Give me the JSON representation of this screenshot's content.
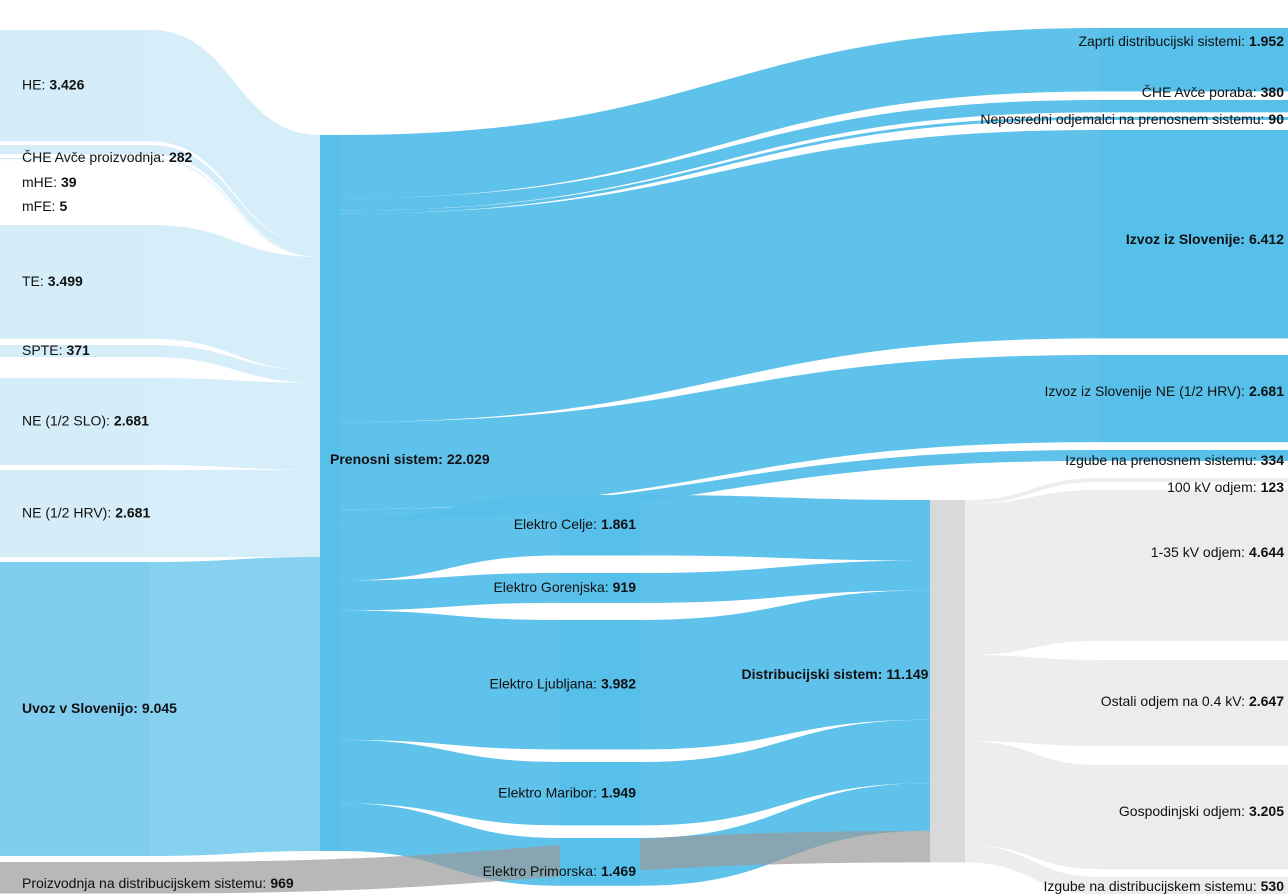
{
  "chart_data": {
    "type": "sankey",
    "nodes": [
      {
        "label": "HE:",
        "value": 3426,
        "value_label": "3.426",
        "color": "#d4edf9"
      },
      {
        "label": "ČHE Avče proizvodnja:",
        "value": 282,
        "value_label": "282",
        "color": "#d4edf9"
      },
      {
        "label": "mHE:",
        "value": 39,
        "value_label": "39",
        "color": "#d4edf9"
      },
      {
        "label": "mFE:",
        "value": 5,
        "value_label": "5",
        "color": "#d4edf9"
      },
      {
        "label": "TE:",
        "value": 3499,
        "value_label": "3.499",
        "color": "#d4edf9"
      },
      {
        "label": "SPTE:",
        "value": 371,
        "value_label": "371",
        "color": "#d4edf9"
      },
      {
        "label": "NE (1/2 SLO):",
        "value": 2681,
        "value_label": "2.681",
        "color": "#d4edf9"
      },
      {
        "label": "NE (1/2 HRV):",
        "value": 2681,
        "value_label": "2.681",
        "color": "#d4edf9"
      },
      {
        "label": "Uvoz v Slovenijo:",
        "value": 9045,
        "value_label": "9.045",
        "color": "#80cdef",
        "bold": true
      },
      {
        "label": "Proizvodnja na distribucijskem sistemu:",
        "value": 969,
        "value_label": "969",
        "color": "#9a9a9a"
      },
      {
        "label": "Prenosni sistem:",
        "value": 22029,
        "value_label": "22.029",
        "color": "#56bfea",
        "bold": true
      },
      {
        "label": "Zaprti distribucijski sistemi:",
        "value": 1952,
        "value_label": "1.952",
        "color": "#56bfea"
      },
      {
        "label": "ČHE Avče poraba:",
        "value": 380,
        "value_label": "380",
        "color": "#56bfea"
      },
      {
        "label": "Neposredni odjemalci na prenosnem sistemu:",
        "value": 90,
        "value_label": "90",
        "color": "#56bfea"
      },
      {
        "label": "Izvoz iz Slovenije:",
        "value": 6412,
        "value_label": "6.412",
        "color": "#56bfea",
        "bold": true
      },
      {
        "label": "Izvoz iz Slovenije NE (1/2 HRV):",
        "value": 2681,
        "value_label": "2.681",
        "color": "#56bfea"
      },
      {
        "label": "Izgube na prenosnem sistemu:",
        "value": 334,
        "value_label": "334",
        "color": "#56bfea"
      },
      {
        "label": "Elektro Celje:",
        "value": 1861,
        "value_label": "1.861",
        "color": "#56bfea"
      },
      {
        "label": "Elektro Gorenjska:",
        "value": 919,
        "value_label": "919",
        "color": "#56bfea"
      },
      {
        "label": "Elektro Ljubljana:",
        "value": 3982,
        "value_label": "3.982",
        "color": "#56bfea"
      },
      {
        "label": "Elektro Maribor:",
        "value": 1949,
        "value_label": "1.949",
        "color": "#56bfea"
      },
      {
        "label": "Elektro Primorska:",
        "value": 1469,
        "value_label": "1.469",
        "color": "#56bfea"
      },
      {
        "label": "Distribucijski sistem:",
        "value": 11149,
        "value_label": "11.149",
        "color": "#d9d9d9",
        "bold": true
      },
      {
        "label": "100 kV odjem:",
        "value": 123,
        "value_label": "123",
        "color": "#ececec"
      },
      {
        "label": "1-35 kV odjem:",
        "value": 4644,
        "value_label": "4.644",
        "color": "#ececec"
      },
      {
        "label": "Ostali odjem na 0.4 kV:",
        "value": 2647,
        "value_label": "2.647",
        "color": "#ececec"
      },
      {
        "label": "Gospodinjski odjem:",
        "value": 3205,
        "value_label": "3.205",
        "color": "#ececec"
      },
      {
        "label": "Izgube na distribucijskem sistemu:",
        "value": 530,
        "value_label": "530",
        "color": "#ececec"
      }
    ],
    "links": [
      {
        "source": 0,
        "target": 10
      },
      {
        "source": 1,
        "target": 10
      },
      {
        "source": 2,
        "target": 10
      },
      {
        "source": 3,
        "target": 10
      },
      {
        "source": 4,
        "target": 10
      },
      {
        "source": 5,
        "target": 10
      },
      {
        "source": 6,
        "target": 10
      },
      {
        "source": 7,
        "target": 10
      },
      {
        "source": 8,
        "target": 10
      },
      {
        "source": 10,
        "target": 11
      },
      {
        "source": 10,
        "target": 12
      },
      {
        "source": 10,
        "target": 13
      },
      {
        "source": 10,
        "target": 14
      },
      {
        "source": 10,
        "target": 15
      },
      {
        "source": 10,
        "target": 16
      },
      {
        "source": 10,
        "target": 17
      },
      {
        "source": 10,
        "target": 18
      },
      {
        "source": 10,
        "target": 19
      },
      {
        "source": 10,
        "target": 20
      },
      {
        "source": 10,
        "target": 21
      },
      {
        "source": 17,
        "target": 22
      },
      {
        "source": 18,
        "target": 22
      },
      {
        "source": 19,
        "target": 22
      },
      {
        "source": 20,
        "target": 22
      },
      {
        "source": 21,
        "target": 22
      },
      {
        "source": 9,
        "target": 22
      },
      {
        "source": 22,
        "target": 23
      },
      {
        "source": 22,
        "target": 24
      },
      {
        "source": 22,
        "target": 25
      },
      {
        "source": 22,
        "target": 26
      },
      {
        "source": 22,
        "target": 27
      }
    ]
  }
}
